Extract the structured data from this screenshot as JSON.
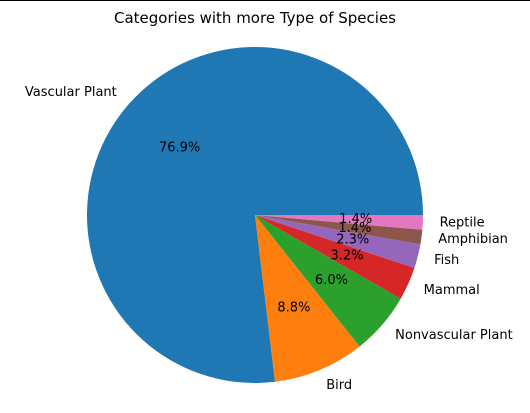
{
  "chart_data": {
    "type": "pie",
    "title": "Categories with more Type of Species",
    "start_angle_deg": 0,
    "direction": "counterclockwise",
    "slices": [
      {
        "label": "Vascular Plant",
        "pct_text": "76.9%",
        "value": 76.9,
        "color": "#1f77b4"
      },
      {
        "label": "Bird",
        "pct_text": "8.8%",
        "value": 8.8,
        "color": "#ff7f0e"
      },
      {
        "label": "Nonvascular Plant",
        "pct_text": "6.0%",
        "value": 6.0,
        "color": "#2ca02c"
      },
      {
        "label": "Mammal",
        "pct_text": "3.2%",
        "value": 3.2,
        "color": "#d62728"
      },
      {
        "label": "Fish",
        "pct_text": "2.3%",
        "value": 2.3,
        "color": "#9467bd"
      },
      {
        "label": "Amphibian",
        "pct_text": "1.4%",
        "value": 1.4,
        "color": "#8c564b"
      },
      {
        "label": "Reptile",
        "pct_text": "1.4%",
        "value": 1.4,
        "color": "#e377c2"
      }
    ]
  }
}
